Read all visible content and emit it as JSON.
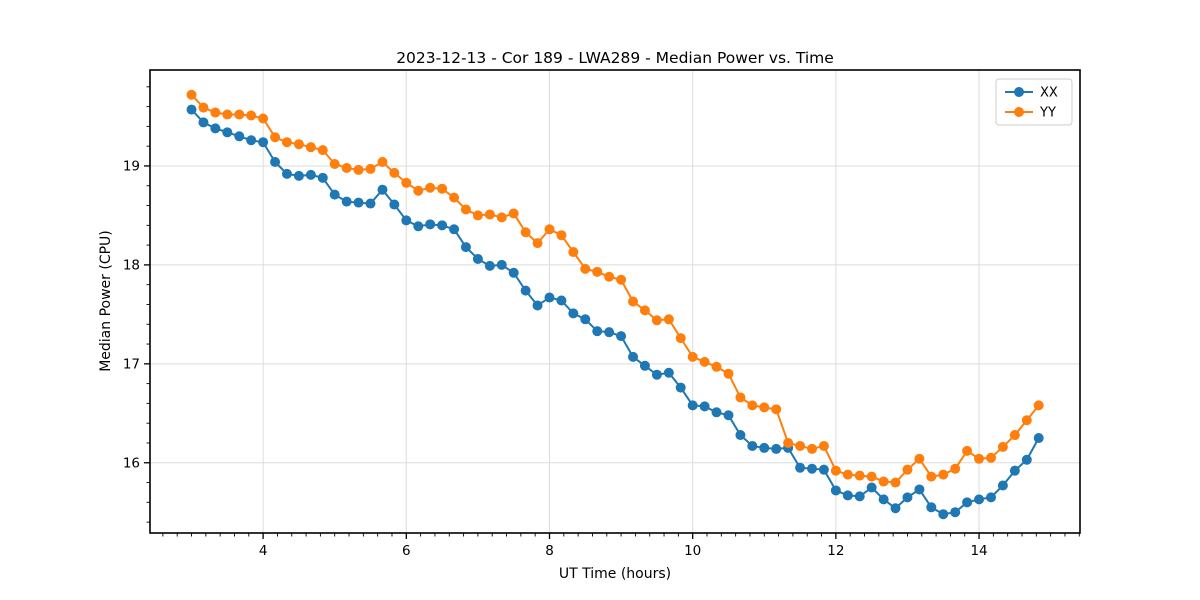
{
  "chart_data": {
    "type": "line",
    "title": "2023-12-13 - Cor 189 - LWA289 - Median Power vs. Time",
    "xlabel": "UT Time (hours)",
    "ylabel": "Median Power (CPU)",
    "legend_position": "upper right",
    "grid": true,
    "background": "#ffffff",
    "xlim": [
      2.42,
      15.41
    ],
    "ylim": [
      15.29,
      19.97
    ],
    "xticks": [
      4,
      6,
      8,
      10,
      12,
      14
    ],
    "xtick_labels": [
      "4",
      "6",
      "8",
      "10",
      "12",
      "14"
    ],
    "yticks": [
      16,
      17,
      18,
      19
    ],
    "ytick_labels": [
      "16",
      "17",
      "18",
      "19"
    ],
    "minor_tick_step_x": 0.2,
    "minor_tick_step_y": 0.2,
    "x": [
      3.0,
      3.167,
      3.333,
      3.5,
      3.667,
      3.833,
      4.0,
      4.167,
      4.333,
      4.5,
      4.667,
      4.833,
      5.0,
      5.167,
      5.333,
      5.5,
      5.667,
      5.833,
      6.0,
      6.167,
      6.333,
      6.5,
      6.667,
      6.833,
      7.0,
      7.167,
      7.333,
      7.5,
      7.667,
      7.833,
      8.0,
      8.167,
      8.333,
      8.5,
      8.667,
      8.833,
      9.0,
      9.167,
      9.333,
      9.5,
      9.667,
      9.833,
      10.0,
      10.167,
      10.333,
      10.5,
      10.667,
      10.833,
      11.0,
      11.167,
      11.333,
      11.5,
      11.667,
      11.833,
      12.0,
      12.167,
      12.333,
      12.5,
      12.667,
      12.833,
      13.0,
      13.167,
      13.333,
      13.5,
      13.667,
      13.833,
      14.0,
      14.167,
      14.333,
      14.5,
      14.667,
      14.833
    ],
    "series": [
      {
        "name": "XX",
        "color": "#1f77b4",
        "marker": "circle",
        "values": [
          19.57,
          19.44,
          19.38,
          19.34,
          19.3,
          19.26,
          19.24,
          19.04,
          18.92,
          18.9,
          18.91,
          18.88,
          18.71,
          18.64,
          18.63,
          18.62,
          18.76,
          18.61,
          18.45,
          18.39,
          18.41,
          18.4,
          18.36,
          18.18,
          18.06,
          17.99,
          18.0,
          17.92,
          17.74,
          17.59,
          17.67,
          17.64,
          17.51,
          17.45,
          17.33,
          17.32,
          17.28,
          17.07,
          16.98,
          16.89,
          16.91,
          16.76,
          16.58,
          16.57,
          16.51,
          16.48,
          16.28,
          16.17,
          16.15,
          16.14,
          16.15,
          15.95,
          15.94,
          15.93,
          15.72,
          15.67,
          15.66,
          15.75,
          15.63,
          15.54,
          15.65,
          15.73,
          15.55,
          15.48,
          15.5,
          15.6,
          15.63,
          15.65,
          15.77,
          15.92,
          16.03,
          16.25
        ]
      },
      {
        "name": "YY",
        "color": "#ff7f0e",
        "marker": "circle",
        "values": [
          19.72,
          19.59,
          19.54,
          19.52,
          19.52,
          19.51,
          19.48,
          19.29,
          19.24,
          19.22,
          19.19,
          19.16,
          19.02,
          18.98,
          18.96,
          18.97,
          19.04,
          18.93,
          18.83,
          18.75,
          18.78,
          18.77,
          18.68,
          18.56,
          18.5,
          18.51,
          18.48,
          18.52,
          18.33,
          18.22,
          18.36,
          18.3,
          18.13,
          17.96,
          17.93,
          17.88,
          17.85,
          17.63,
          17.54,
          17.44,
          17.45,
          17.26,
          17.07,
          17.02,
          16.97,
          16.9,
          16.66,
          16.58,
          16.56,
          16.54,
          16.2,
          16.17,
          16.14,
          16.17,
          15.92,
          15.88,
          15.87,
          15.86,
          15.81,
          15.8,
          15.93,
          16.04,
          15.86,
          15.88,
          15.94,
          16.12,
          16.04,
          16.05,
          16.16,
          16.28,
          16.43,
          16.58
        ]
      }
    ]
  }
}
